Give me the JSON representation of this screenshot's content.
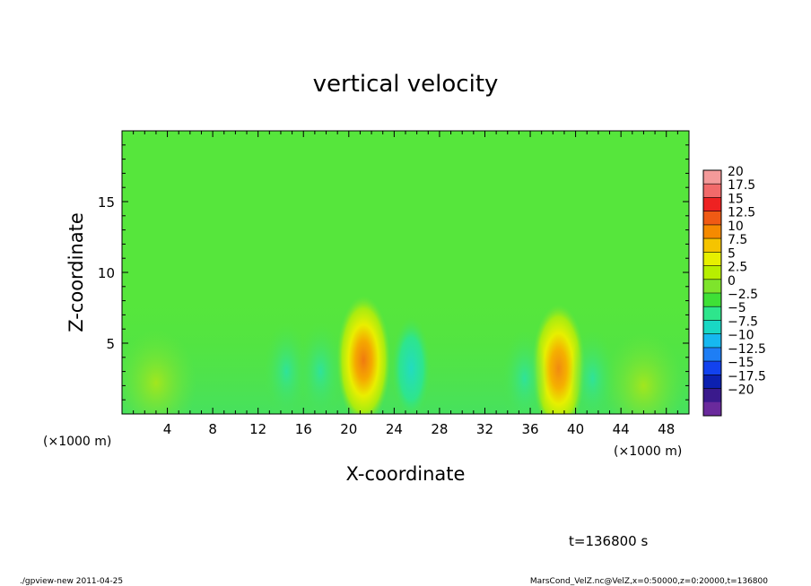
{
  "chart_data": {
    "type": "heatmap",
    "title": "vertical velocity",
    "xlabel": "X-coordinate",
    "ylabel": "Z-coordinate",
    "x_unit": "(×1000 m)",
    "y_unit": "(×1000 m)",
    "xlim": [
      0,
      50
    ],
    "ylim": [
      0,
      20
    ],
    "x_ticks": [
      4,
      8,
      12,
      16,
      20,
      24,
      28,
      32,
      36,
      40,
      44,
      48
    ],
    "y_ticks": [
      5,
      10,
      15
    ],
    "colorbar": {
      "levels": [
        20,
        17.5,
        15,
        12.5,
        10,
        7.5,
        5,
        2.5,
        0,
        -2.5,
        -5,
        -7.5,
        -10,
        -12.5,
        -15,
        -17.5,
        -20
      ],
      "labels": [
        "20",
        "17.5",
        "15",
        "12.5",
        "10",
        "7.5",
        "5",
        "2.5",
        "0",
        "−2.5",
        "−5",
        "−7.5",
        "−10",
        "−12.5",
        "−15",
        "−17.5",
        "−20"
      ],
      "colors": [
        "#f49a9a",
        "#f26a6a",
        "#ee2222",
        "#f05a14",
        "#f58a00",
        "#f5c400",
        "#e7f000",
        "#b7ef00",
        "#7ee42c",
        "#3fe036",
        "#2ee58c",
        "#19d8c4",
        "#16b8f0",
        "#1e7ef5",
        "#1242ee",
        "#0c20b0",
        "#3a1a8c",
        "#6a2a9c"
      ]
    },
    "features": [
      {
        "x": 21.3,
        "z": 3.8,
        "value": 12.5
      },
      {
        "x": 38.5,
        "z": 3.2,
        "value": 11
      },
      {
        "x": 3,
        "z": 2.2,
        "value": 3
      },
      {
        "x": 46,
        "z": 2,
        "value": 2.5
      },
      {
        "x": 25.5,
        "z": 3.2,
        "value": -5
      },
      {
        "x": 14.5,
        "z": 3,
        "value": -3
      },
      {
        "x": 17.5,
        "z": 3,
        "value": -3.5
      },
      {
        "x": 35.5,
        "z": 2.5,
        "value": -3
      },
      {
        "x": 41.5,
        "z": 2.5,
        "value": -3
      }
    ],
    "background_value": 0
  },
  "time_label": "t=136800 s",
  "footer_left": "./gpview-new  2011-04-25",
  "footer_right": "MarsCond_VelZ.nc@VelZ,x=0:50000,z=0:20000,t=136800"
}
